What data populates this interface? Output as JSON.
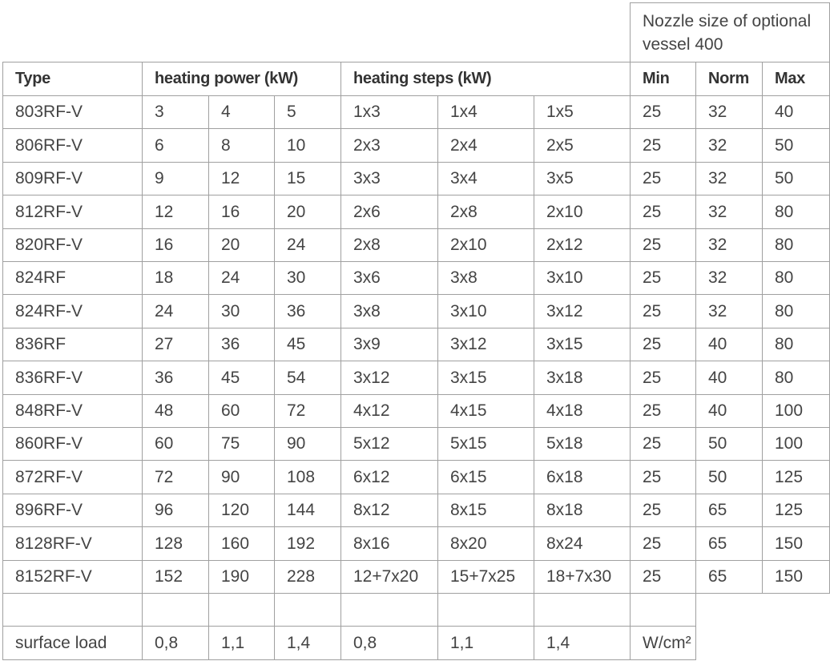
{
  "nozzle_header": "Nozzle size of optional vessel 400",
  "header": [
    "Type",
    "heating power (kW)",
    "heating steps (kW)",
    "Min",
    "Norm",
    "Max"
  ],
  "rows": [
    [
      "803RF-V",
      3,
      4,
      5,
      "1x3",
      "1x4",
      "1x5",
      25,
      32,
      40
    ],
    [
      "806RF-V",
      6,
      8,
      10,
      "2x3",
      "2x4",
      "2x5",
      25,
      32,
      50
    ],
    [
      "809RF-V",
      9,
      12,
      15,
      "3x3",
      "3x4",
      "3x5",
      25,
      32,
      50
    ],
    [
      "812RF-V",
      12,
      16,
      20,
      "2x6",
      "2x8",
      "2x10",
      25,
      32,
      80
    ],
    [
      "820RF-V",
      16,
      20,
      24,
      "2x8",
      "2x10",
      "2x12",
      25,
      32,
      80
    ],
    [
      "824RF",
      18,
      24,
      30,
      "3x6",
      "3x8",
      "3x10",
      25,
      32,
      80
    ],
    [
      "824RF-V",
      24,
      30,
      36,
      "3x8",
      "3x10",
      "3x12",
      25,
      32,
      80
    ],
    [
      "836RF",
      27,
      36,
      45,
      "3x9",
      "3x12",
      "3x15",
      25,
      40,
      80
    ],
    [
      "836RF-V",
      36,
      45,
      54,
      "3x12",
      "3x15",
      "3x18",
      25,
      40,
      80
    ],
    [
      "848RF-V",
      48,
      60,
      72,
      "4x12",
      "4x15",
      "4x18",
      25,
      40,
      100
    ],
    [
      "860RF-V",
      60,
      75,
      90,
      "5x12",
      "5x15",
      "5x18",
      25,
      50,
      100
    ],
    [
      "872RF-V",
      72,
      90,
      108,
      "6x12",
      "6x15",
      "6x18",
      25,
      50,
      125
    ],
    [
      "896RF-V",
      96,
      120,
      144,
      "8x12",
      "8x15",
      "8x18",
      25,
      65,
      125
    ],
    [
      "8128RF-V",
      128,
      160,
      192,
      "8x16",
      "8x20",
      "8x24",
      25,
      65,
      150
    ],
    [
      "8152RF-V",
      152,
      190,
      228,
      "12+7x20",
      "15+7x25",
      "18+7x30",
      25,
      65,
      150
    ]
  ],
  "footer": [
    "surface load",
    "0,8",
    "1,1",
    "1,4",
    "0,8",
    "1,1",
    "1,4",
    "W/cm²"
  ]
}
